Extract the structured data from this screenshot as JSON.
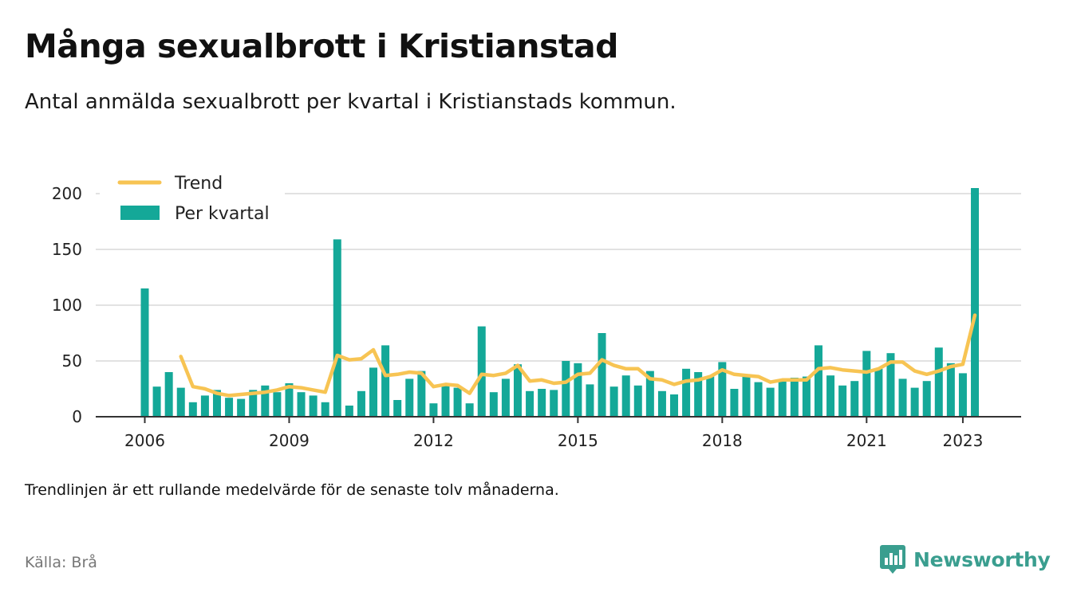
{
  "header": {
    "title": "Många sexualbrott i Kristianstad",
    "subtitle": "Antal anmälda sexualbrott per kvartal i Kristianstads kommun."
  },
  "footer": {
    "note": "Trendlinjen är ett rullande medelvärde för de senaste tolv månaderna.",
    "source": "Källa: Brå",
    "brand": "Newsworthy"
  },
  "colors": {
    "bar": "#14a898",
    "trend": "#f7c453",
    "grid": "#d9d9d9",
    "brand": "#3a9e8f"
  },
  "chart_data": {
    "type": "bar",
    "title": "Många sexualbrott i Kristianstad",
    "subtitle": "Antal anmälda sexualbrott per kvartal i Kristianstads kommun.",
    "xlabel": "",
    "ylabel": "",
    "x_start": "2006 Q1",
    "x_ticks": [
      "2006",
      "2009",
      "2012",
      "2015",
      "2018",
      "2021",
      "2023"
    ],
    "y_ticks": [
      0,
      50,
      100,
      150,
      200
    ],
    "ylim": [
      0,
      210
    ],
    "grid": "horizontal",
    "legend": {
      "placement": "top-left",
      "entries": [
        "Trend",
        "Per kvartal"
      ]
    },
    "categories": [
      "2006 Q1",
      "2006 Q2",
      "2006 Q3",
      "2006 Q4",
      "2007 Q1",
      "2007 Q2",
      "2007 Q3",
      "2007 Q4",
      "2008 Q1",
      "2008 Q2",
      "2008 Q3",
      "2008 Q4",
      "2009 Q1",
      "2009 Q2",
      "2009 Q3",
      "2009 Q4",
      "2010 Q1",
      "2010 Q2",
      "2010 Q3",
      "2010 Q4",
      "2011 Q1",
      "2011 Q2",
      "2011 Q3",
      "2011 Q4",
      "2012 Q1",
      "2012 Q2",
      "2012 Q3",
      "2012 Q4",
      "2013 Q1",
      "2013 Q2",
      "2013 Q3",
      "2013 Q4",
      "2014 Q1",
      "2014 Q2",
      "2014 Q3",
      "2014 Q4",
      "2015 Q1",
      "2015 Q2",
      "2015 Q3",
      "2015 Q4",
      "2016 Q1",
      "2016 Q2",
      "2016 Q3",
      "2016 Q4",
      "2017 Q1",
      "2017 Q2",
      "2017 Q3",
      "2017 Q4",
      "2018 Q1",
      "2018 Q2",
      "2018 Q3",
      "2018 Q4",
      "2019 Q1",
      "2019 Q2",
      "2019 Q3",
      "2019 Q4",
      "2020 Q1",
      "2020 Q2",
      "2020 Q3",
      "2020 Q4",
      "2021 Q1",
      "2021 Q2",
      "2021 Q3",
      "2021 Q4",
      "2022 Q1",
      "2022 Q2",
      "2022 Q3",
      "2022 Q4",
      "2023 Q1",
      "2023 Q2"
    ],
    "series": [
      {
        "name": "Per kvartal",
        "type": "bar",
        "values": [
          115,
          27,
          40,
          26,
          13,
          19,
          24,
          17,
          16,
          24,
          28,
          22,
          30,
          22,
          19,
          13,
          159,
          10,
          23,
          44,
          64,
          15,
          34,
          41,
          12,
          28,
          26,
          12,
          81,
          22,
          34,
          47,
          23,
          25,
          24,
          50,
          48,
          29,
          75,
          27,
          37,
          28,
          41,
          23,
          20,
          43,
          40,
          36,
          49,
          25,
          36,
          31,
          26,
          33,
          35,
          36,
          64,
          37,
          28,
          32,
          59,
          43,
          57,
          34,
          26,
          32,
          62,
          48,
          39,
          205
        ]
      },
      {
        "name": "Trend",
        "type": "line",
        "values": [
          null,
          null,
          null,
          54,
          27,
          25,
          21,
          19,
          20,
          21,
          22,
          24,
          27,
          26,
          24,
          22,
          55,
          51,
          52,
          60,
          37,
          38,
          40,
          39,
          27,
          29,
          28,
          21,
          38,
          37,
          39,
          46,
          32,
          33,
          30,
          31,
          38,
          39,
          51,
          46,
          43,
          43,
          34,
          33,
          29,
          32,
          33,
          36,
          42,
          38,
          37,
          36,
          31,
          33,
          33,
          33,
          43,
          44,
          42,
          41,
          40,
          43,
          49,
          49,
          41,
          38,
          41,
          45,
          47,
          91
        ]
      }
    ]
  }
}
